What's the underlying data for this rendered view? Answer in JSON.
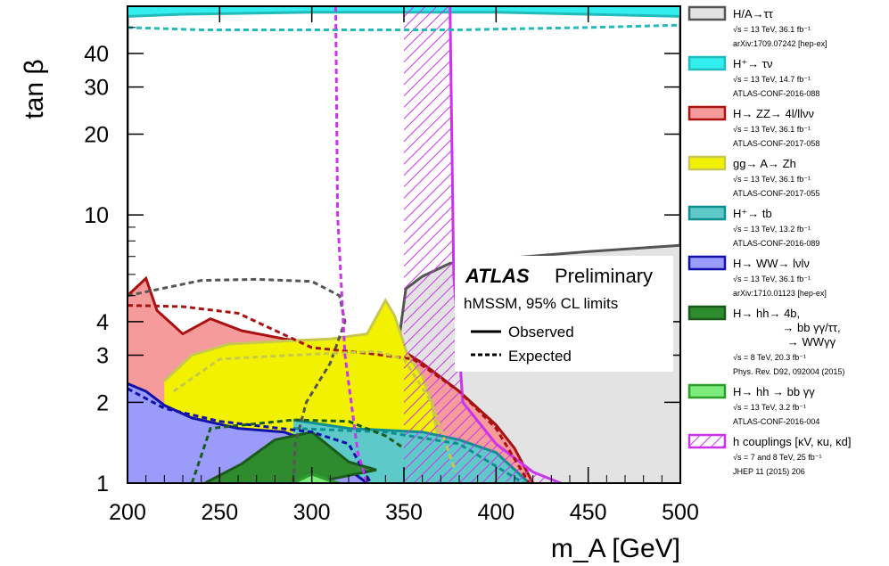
{
  "chart_data": {
    "type": "area",
    "title": "",
    "xlabel": "m_A [GeV]",
    "ylabel": "tan β",
    "xlim": [
      200,
      500
    ],
    "ylim": [
      1,
      60
    ],
    "yscale": "log",
    "x_ticks": [
      "200",
      "250",
      "300",
      "350",
      "400",
      "450",
      "500"
    ],
    "y_ticks": [
      {
        "value": 1,
        "label": "1"
      },
      {
        "value": 2,
        "label": "2"
      },
      {
        "value": 3,
        "label": "3"
      },
      {
        "value": 4,
        "label": "4"
      },
      {
        "value": 10,
        "label": "10"
      },
      {
        "value": 20,
        "label": "20"
      },
      {
        "value": 30,
        "label": "30"
      },
      {
        "value": 40,
        "label": "40"
      }
    ],
    "legend_position": "right",
    "series": [
      {
        "name": "H/A→ττ",
        "style": "region",
        "fill": "#e3e3e3",
        "line": "#555555",
        "observed": [
          [
            200,
            60
          ],
          [
            200,
            2.3
          ],
          [
            215,
            2.45
          ],
          [
            232,
            2.85
          ],
          [
            262,
            3.15
          ],
          [
            290,
            3.25
          ],
          [
            320,
            3.15
          ],
          [
            332,
            2.9
          ],
          [
            340,
            1.25
          ],
          [
            345,
            2.6
          ],
          [
            351,
            5.3
          ],
          [
            360,
            5.9
          ],
          [
            375,
            6.6
          ],
          [
            400,
            6.85
          ],
          [
            450,
            7.3
          ],
          [
            500,
            7.7
          ],
          [
            500,
            60
          ]
        ],
        "expected": [
          [
            200,
            5.0
          ],
          [
            240,
            5.7
          ],
          [
            270,
            5.75
          ],
          [
            300,
            5.65
          ],
          [
            315,
            5.0
          ],
          [
            318,
            4.0
          ],
          [
            310,
            2.8
          ],
          [
            297,
            2.0
          ],
          [
            291,
            1.4
          ],
          [
            290,
            1.0
          ]
        ]
      },
      {
        "name": "H+→τν",
        "style": "band-top",
        "fill": "#33eeee",
        "line": "#22bbbb",
        "observed": [
          [
            200,
            55
          ],
          [
            230,
            56
          ],
          [
            300,
            57
          ],
          [
            400,
            57
          ],
          [
            500,
            55
          ]
        ],
        "expected": [
          [
            200,
            50
          ],
          [
            240,
            49
          ],
          [
            300,
            49
          ],
          [
            380,
            49
          ],
          [
            450,
            50
          ],
          [
            500,
            51
          ]
        ]
      },
      {
        "name": "H→ZZ→4l/llνν",
        "style": "region",
        "fill": "#f59b9b",
        "line": "#aa1111",
        "observed": [
          [
            200,
            5.0
          ],
          [
            210,
            5.8
          ],
          [
            216,
            4.4
          ],
          [
            230,
            3.6
          ],
          [
            245,
            4.1
          ],
          [
            262,
            3.7
          ],
          [
            285,
            3.45
          ],
          [
            310,
            3.25
          ],
          [
            340,
            3.3
          ],
          [
            350,
            3.1
          ],
          [
            360,
            2.8
          ],
          [
            380,
            2.2
          ],
          [
            400,
            1.65
          ],
          [
            410,
            1.35
          ],
          [
            420,
            1.0
          ]
        ],
        "expected": [
          [
            200,
            4.6
          ],
          [
            230,
            4.55
          ],
          [
            260,
            4.3
          ],
          [
            300,
            3.2
          ],
          [
            330,
            3.05
          ],
          [
            355,
            2.9
          ],
          [
            380,
            2.2
          ],
          [
            400,
            1.6
          ],
          [
            418,
            1.0
          ]
        ]
      },
      {
        "name": "gg→A→Zh",
        "style": "region",
        "fill": "#f2f200",
        "line": "#c8c850",
        "observed": [
          [
            220,
            2.4
          ],
          [
            235,
            3.0
          ],
          [
            255,
            3.3
          ],
          [
            290,
            3.4
          ],
          [
            310,
            3.45
          ],
          [
            330,
            3.6
          ],
          [
            340,
            4.8
          ],
          [
            345,
            4.2
          ],
          [
            352,
            3.0
          ],
          [
            360,
            2.5
          ],
          [
            365,
            2.0
          ],
          [
            370,
            1.3
          ],
          [
            380,
            1.0
          ]
        ],
        "expected": [
          [
            225,
            2.2
          ],
          [
            250,
            2.9
          ],
          [
            290,
            3.0
          ],
          [
            335,
            3.1
          ],
          [
            350,
            2.9
          ],
          [
            365,
            2.0
          ],
          [
            378,
            1.1
          ]
        ]
      },
      {
        "name": "H+→tb",
        "style": "region",
        "fill": "#5ec9c9",
        "line": "#0e9090",
        "observed": [
          [
            290,
            1.72
          ],
          [
            320,
            1.6
          ],
          [
            360,
            1.55
          ],
          [
            380,
            1.45
          ],
          [
            400,
            1.3
          ],
          [
            418,
            1.0
          ]
        ],
        "expected": [
          [
            290,
            1.6
          ],
          [
            340,
            1.55
          ],
          [
            380,
            1.4
          ],
          [
            415,
            1.0
          ]
        ]
      },
      {
        "name": "H→WW→lνlν",
        "style": "region",
        "fill": "#9a9bfa",
        "line": "#1111aa",
        "observed": [
          [
            200,
            2.35
          ],
          [
            210,
            2.2
          ],
          [
            220,
            1.95
          ],
          [
            235,
            1.75
          ],
          [
            260,
            1.6
          ],
          [
            285,
            1.55
          ],
          [
            300,
            1.42
          ],
          [
            330,
            1.0
          ]
        ],
        "expected": [
          [
            200,
            2.25
          ],
          [
            220,
            1.9
          ],
          [
            250,
            1.7
          ],
          [
            300,
            1.55
          ],
          [
            320,
            1.4
          ],
          [
            332,
            1.0
          ]
        ]
      },
      {
        "name": "H→hh→4b, →bb γγ/ττ, →WWγγ",
        "style": "region",
        "fill": "#2e8b2e",
        "line": "#1a5a1a",
        "observed": [
          [
            242,
            1.0
          ],
          [
            262,
            1.18
          ],
          [
            280,
            1.45
          ],
          [
            300,
            1.55
          ],
          [
            320,
            1.2
          ],
          [
            335,
            1.12
          ],
          [
            300,
            1.0
          ]
        ],
        "expected": [
          [
            235,
            1.0
          ],
          [
            245,
            1.6
          ],
          [
            290,
            1.72
          ],
          [
            320,
            1.7
          ],
          [
            340,
            1.5
          ],
          [
            350,
            1.35
          ]
        ]
      },
      {
        "name": "H→hh→bb γγ",
        "style": "region",
        "fill": "#7dec7d",
        "line": "#2aa02a",
        "observed": [
          [
            290,
            1.0
          ],
          [
            300,
            1.08
          ],
          [
            310,
            1.02
          ],
          [
            315,
            1.0
          ]
        ]
      },
      {
        "name": "h couplings [κV, κu, κd]",
        "style": "hatched",
        "fill": "#cc33ee",
        "line": "#cc33ee",
        "observed": [
          [
            375,
            60
          ],
          [
            377,
            6.0
          ],
          [
            382,
            2.0
          ],
          [
            400,
            1.4
          ],
          [
            420,
            1.1
          ],
          [
            435,
            1.0
          ]
        ],
        "expected": [
          [
            313,
            60
          ],
          [
            314,
            10
          ],
          [
            318,
            3.0
          ],
          [
            325,
            1.3
          ],
          [
            330,
            1.0
          ]
        ]
      }
    ],
    "annotations": [
      "ATLAS",
      "Preliminary",
      "hMSSM, 95% CL limits",
      "Observed",
      "Expected"
    ]
  },
  "annotation": {
    "atlas": "ATLAS",
    "preliminary": "Preliminary",
    "subtitle": "hMSSM, 95% CL limits",
    "observed": "Observed",
    "expected": "Expected"
  },
  "legend": [
    {
      "label": "H/A→ττ",
      "lines": [
        "√s = 13 TeV, 36.1 fb⁻¹",
        "arXiv:1709.07242 [hep-ex]"
      ],
      "fill": "#e3e3e3",
      "border": "#555555"
    },
    {
      "label": "H⁺→ τν",
      "lines": [
        "√s = 13 TeV, 14.7 fb⁻¹",
        "ATLAS-CONF-2016-088"
      ],
      "fill": "#33eeee",
      "border": "#22bbbb"
    },
    {
      "label": "H→ ZZ→ 4l/llνν",
      "lines": [
        "√s = 13 TeV, 36.1 fb⁻¹",
        "ATLAS-CONF-2017-058"
      ],
      "fill": "#f59b9b",
      "border": "#aa1111"
    },
    {
      "label": "gg→ A→ Zh",
      "lines": [
        "√s = 13 TeV, 36.1 fb⁻¹",
        "ATLAS-CONF-2017-055"
      ],
      "fill": "#f2f200",
      "border": "#c8c850"
    },
    {
      "label": "H⁺→ tb",
      "lines": [
        "√s = 13 TeV, 13.2 fb⁻¹",
        "ATLAS-CONF-2016-089"
      ],
      "fill": "#5ec9c9",
      "border": "#0e9090"
    },
    {
      "label": "H→ WW→ lνlν",
      "lines": [
        "√s = 13 TeV, 36.1 fb⁻¹",
        "arXiv:1710.01123 [hep-ex]"
      ],
      "fill": "#9a9bfa",
      "border": "#1111aa"
    },
    {
      "label": "H→ hh→ 4b,",
      "extra": [
        "→ bb γγ/ττ,",
        "→ WWγγ"
      ],
      "lines": [
        "√s = 8 TeV, 20.3 fb⁻¹",
        "Phys. Rev. D92, 092004 (2015)"
      ],
      "fill": "#2e8b2e",
      "border": "#1a5a1a"
    },
    {
      "label": "H→ hh → bb γγ",
      "lines": [
        "√s = 13 TeV, 3.2 fb⁻¹",
        "ATLAS-CONF-2016-004"
      ],
      "fill": "#7dec7d",
      "border": "#2aa02a"
    },
    {
      "label": "h couplings [κV, κu, κd]",
      "lines": [
        "√s = 7 and 8 TeV, 25 fb⁻¹",
        "JHEP 11 (2015) 206"
      ],
      "fill": "hatch",
      "border": "#cc33ee"
    }
  ]
}
